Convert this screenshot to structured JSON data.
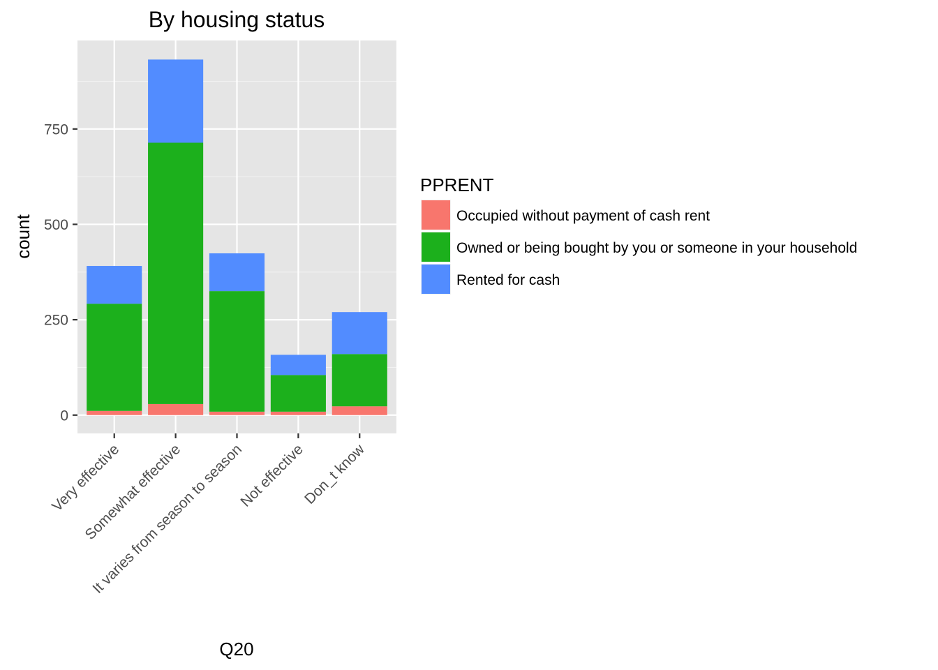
{
  "chart_data": {
    "type": "bar",
    "stacked": true,
    "title": "By housing status",
    "xlabel": "Q20",
    "ylabel": "count",
    "categories": [
      "Very effective",
      "Somewhat effective",
      "It varies from season to season",
      "Not effective",
      "Don_t know"
    ],
    "series": [
      {
        "name": "Occupied without payment of cash rent",
        "color": "#F8766D",
        "values": [
          11,
          29,
          9,
          9,
          23
        ]
      },
      {
        "name": "Owned or being bought by you or someone in your household",
        "color": "#1CB01C",
        "values": [
          281,
          685,
          316,
          96,
          137
        ]
      },
      {
        "name": "Rented for cash",
        "color": "#528CFF",
        "values": [
          99,
          218,
          99,
          53,
          110
        ]
      }
    ],
    "yticks": [
      0,
      250,
      500,
      750
    ],
    "ylim": [
      -48,
      982
    ],
    "grid": true,
    "panel_background": "#E5E5E5",
    "legend": {
      "title": "PPRENT",
      "position": "right"
    }
  }
}
